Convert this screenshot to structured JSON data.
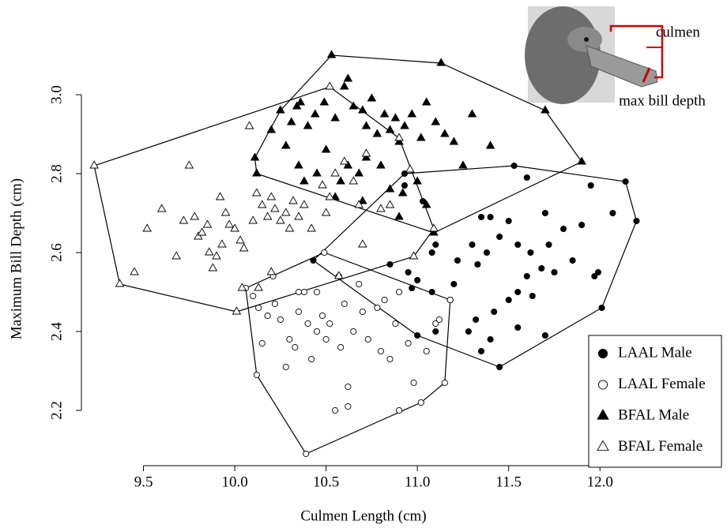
{
  "chart_data": {
    "type": "scatter",
    "xlabel": "Culmen Length (cm)",
    "ylabel": "Maximum Bill Depth (cm)",
    "xlim": [
      9.16,
      12.25
    ],
    "ylim": [
      2.06,
      3.11
    ],
    "xticks": [
      9.5,
      {
        "value": 10,
        "label": "10.0"
      },
      10.5,
      {
        "value": 11,
        "label": "11.0"
      },
      11.5,
      {
        "value": 12,
        "label": "12.0"
      }
    ],
    "yticks": [
      2.2,
      2.4,
      2.6,
      2.8,
      {
        "value": 3,
        "label": "3.0"
      }
    ],
    "annotations": [
      "culmen",
      "max bill depth"
    ],
    "hulls": true,
    "series": [
      {
        "name": "LAAL Male",
        "shape": "circle",
        "filled": true,
        "color": "#000000",
        "x": [
          10.43,
          10.93,
          11.53,
          12.14,
          12.2,
          12.01,
          11.45,
          11.18,
          10.93,
          11.03,
          11.1,
          11.08,
          10.85,
          10.95,
          11.0,
          10.97,
          11.08,
          11.2,
          11.22,
          11.3,
          11.35,
          11.4,
          11.38,
          11.33,
          11.45,
          11.5,
          11.55,
          11.62,
          11.6,
          11.55,
          11.5,
          11.63,
          11.68,
          11.72,
          11.75,
          11.8,
          11.7,
          11.85,
          11.9,
          11.99,
          11.97,
          12.07,
          11.95,
          11.7,
          11.55,
          11.4,
          11.32,
          11.28,
          11.35,
          11.1,
          11.0,
          11.42,
          11.6
        ],
        "y": [
          2.58,
          2.8,
          2.82,
          2.78,
          2.68,
          2.46,
          2.31,
          2.48,
          2.77,
          2.73,
          2.62,
          2.6,
          2.57,
          2.55,
          2.53,
          2.51,
          2.5,
          2.52,
          2.58,
          2.62,
          2.69,
          2.69,
          2.6,
          2.57,
          2.64,
          2.68,
          2.62,
          2.6,
          2.54,
          2.5,
          2.48,
          2.49,
          2.56,
          2.62,
          2.55,
          2.66,
          2.7,
          2.58,
          2.67,
          2.55,
          2.54,
          2.7,
          2.77,
          2.39,
          2.41,
          2.38,
          2.43,
          2.4,
          2.35,
          2.4,
          2.39,
          2.45,
          2.79
        ]
      },
      {
        "name": "LAAL Female",
        "shape": "circle",
        "filled": false,
        "color": "#000000",
        "x": [
          10.06,
          10.12,
          10.39,
          10.9,
          11.15,
          11.18,
          10.49,
          10.21,
          10.1,
          10.15,
          10.18,
          10.22,
          10.25,
          10.3,
          10.33,
          10.28,
          10.35,
          10.38,
          10.4,
          10.42,
          10.45,
          10.48,
          10.5,
          10.52,
          10.55,
          10.58,
          10.6,
          10.62,
          10.65,
          10.7,
          10.73,
          10.78,
          10.8,
          10.85,
          10.88,
          10.95,
          10.98,
          11.02,
          11.05,
          11.1,
          11.12,
          10.62,
          10.35,
          10.45,
          10.68,
          10.82,
          10.57,
          10.9,
          10.13
        ],
        "y": [
          2.51,
          2.29,
          2.09,
          2.2,
          2.27,
          2.48,
          2.6,
          2.54,
          2.49,
          2.37,
          2.44,
          2.47,
          2.43,
          2.38,
          2.36,
          2.31,
          2.5,
          2.5,
          2.42,
          2.33,
          2.4,
          2.44,
          2.38,
          2.42,
          2.2,
          2.36,
          2.47,
          2.26,
          2.4,
          2.45,
          2.38,
          2.46,
          2.35,
          2.33,
          2.42,
          2.37,
          2.27,
          2.22,
          2.35,
          2.42,
          2.43,
          2.21,
          2.45,
          2.5,
          2.52,
          2.48,
          2.54,
          2.5,
          2.46
        ]
      },
      {
        "name": "BFAL Male",
        "shape": "triangle",
        "filled": true,
        "color": "#000000",
        "x": [
          10.53,
          11.13,
          11.9,
          11.09,
          10.11,
          10.34,
          10.2,
          10.25,
          10.31,
          10.36,
          10.4,
          10.44,
          10.49,
          10.55,
          10.6,
          10.62,
          10.65,
          10.7,
          10.72,
          10.75,
          10.78,
          10.82,
          10.85,
          10.88,
          10.9,
          10.93,
          10.97,
          11.02,
          11.05,
          11.1,
          11.15,
          11.2,
          11.3,
          11.4,
          11.7,
          10.35,
          10.38,
          10.45,
          10.5,
          10.58,
          10.62,
          10.68,
          10.72,
          10.8,
          10.85,
          10.92,
          11.0,
          11.05,
          10.7,
          10.55,
          10.28,
          10.12,
          11.25,
          10.9
        ],
        "y": [
          3.1,
          3.08,
          2.83,
          2.65,
          2.84,
          2.97,
          2.91,
          2.96,
          2.93,
          2.98,
          2.92,
          2.95,
          2.98,
          2.94,
          3.02,
          3.04,
          2.97,
          2.96,
          2.92,
          2.99,
          2.9,
          2.95,
          2.91,
          2.94,
          2.88,
          2.92,
          2.95,
          2.89,
          2.98,
          2.93,
          2.9,
          2.88,
          2.95,
          2.87,
          2.96,
          2.82,
          2.78,
          2.8,
          2.86,
          2.78,
          2.82,
          2.8,
          2.84,
          2.82,
          2.76,
          2.75,
          2.78,
          2.72,
          2.73,
          2.74,
          2.87,
          2.8,
          2.82,
          2.69
        ]
      },
      {
        "name": "BFAL Female",
        "shape": "triangle",
        "filled": false,
        "color": "#000000",
        "x": [
          9.23,
          9.37,
          10.01,
          10.52,
          11.09,
          10.98,
          9.45,
          9.52,
          9.6,
          9.68,
          9.72,
          9.75,
          9.78,
          9.8,
          9.82,
          9.85,
          9.86,
          9.88,
          9.9,
          9.92,
          9.93,
          9.95,
          9.97,
          10.0,
          10.03,
          10.05,
          10.08,
          10.1,
          10.12,
          10.15,
          10.18,
          10.2,
          10.22,
          10.25,
          10.28,
          10.3,
          10.32,
          10.35,
          10.38,
          10.42,
          10.48,
          10.52,
          10.55,
          10.6,
          10.65,
          10.68,
          10.72,
          10.8,
          10.85,
          10.9,
          10.96,
          10.5,
          10.2,
          10.13,
          10.04,
          10.57,
          10.7
        ],
        "y": [
          2.82,
          2.52,
          2.45,
          3.02,
          2.66,
          2.59,
          2.55,
          2.66,
          2.71,
          2.59,
          2.68,
          2.82,
          2.69,
          2.64,
          2.65,
          2.67,
          2.6,
          2.56,
          2.59,
          2.74,
          2.62,
          2.7,
          2.67,
          2.66,
          2.63,
          2.61,
          2.92,
          2.68,
          2.75,
          2.72,
          2.69,
          2.74,
          2.71,
          2.68,
          2.7,
          2.66,
          2.73,
          2.69,
          2.72,
          2.66,
          2.77,
          2.74,
          2.8,
          2.83,
          2.78,
          2.72,
          2.85,
          2.71,
          2.72,
          2.89,
          2.81,
          2.7,
          2.55,
          2.51,
          2.51,
          2.54,
          2.62
        ]
      }
    ]
  }
}
